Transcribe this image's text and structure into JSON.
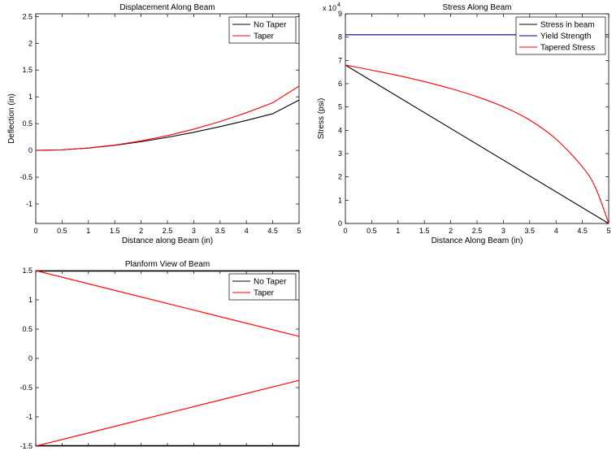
{
  "chart_data": [
    {
      "type": "line",
      "title": "Displacement Along Beam",
      "xlabel": "Distance along Beam (in)",
      "ylabel": "Deflection (in)",
      "xlim": [
        0,
        5
      ],
      "ylim": [
        -1.3636,
        2.55
      ],
      "xticks": [
        0,
        0.5,
        1,
        1.5,
        2,
        2.5,
        3,
        3.5,
        4,
        4.5,
        5
      ],
      "xtick_labels": [
        "0",
        "0.5",
        "1",
        "1.5",
        "2",
        "2.5",
        "3",
        "3.5",
        "4",
        "4.5",
        "5"
      ],
      "yticks": [
        -1,
        -0.5,
        0,
        0.5,
        1,
        1.5,
        2,
        2.5
      ],
      "ytick_labels": [
        "-1",
        "-0.5",
        "0",
        "0.5",
        "1",
        "1.5",
        "2",
        "2.5"
      ],
      "grid": false,
      "legend_position": "top-right",
      "series": [
        {
          "name": "No Taper",
          "color": "#000000",
          "x": [
            0,
            0.5,
            1,
            1.5,
            2,
            2.5,
            3,
            3.5,
            4,
            4.5,
            5
          ],
          "y": [
            0,
            0.011,
            0.044,
            0.095,
            0.163,
            0.244,
            0.338,
            0.444,
            0.56,
            0.685,
            0.94
          ]
        },
        {
          "name": "Taper",
          "color": "#ff0000",
          "x": [
            0,
            0.5,
            1,
            1.5,
            2,
            2.5,
            3,
            3.5,
            4,
            4.5,
            5
          ],
          "y": [
            0,
            0.011,
            0.045,
            0.1,
            0.177,
            0.276,
            0.397,
            0.54,
            0.704,
            0.89,
            1.2
          ]
        }
      ]
    },
    {
      "type": "line",
      "title": "Stress Along Beam",
      "xlabel": "Distance Along Beam (in)",
      "ylabel": "Stress (psi)",
      "y_multiplier": "x 10",
      "y_multiplier_exp": "4",
      "xlim": [
        0,
        5
      ],
      "ylim": [
        0,
        9
      ],
      "xticks": [
        0,
        0.5,
        1,
        1.5,
        2,
        2.5,
        3,
        3.5,
        4,
        4.5,
        5
      ],
      "xtick_labels": [
        "0",
        "0.5",
        "1",
        "1.5",
        "2",
        "2.5",
        "3",
        "3.5",
        "4",
        "4.5",
        "5"
      ],
      "yticks": [
        0,
        1,
        2,
        3,
        4,
        5,
        6,
        7,
        8,
        9
      ],
      "ytick_labels": [
        "0",
        "1",
        "2",
        "3",
        "4",
        "5",
        "6",
        "7",
        "8",
        "9"
      ],
      "grid": false,
      "legend_position": "top-right",
      "series": [
        {
          "name": "Stress in beam",
          "color": "#000000",
          "x": [
            0,
            5
          ],
          "y": [
            6.8,
            0
          ]
        },
        {
          "name": "Yield Strength",
          "color": "#00008b",
          "x": [
            0,
            5
          ],
          "y": [
            8.1,
            8.1
          ]
        },
        {
          "name": "Tapered Stress",
          "color": "#ff0000",
          "x": [
            0,
            0.5,
            1,
            1.5,
            2,
            2.5,
            3,
            3.5,
            4,
            4.5,
            4.75,
            5
          ],
          "y": [
            6.8,
            6.58,
            6.35,
            6.09,
            5.79,
            5.44,
            5.01,
            4.44,
            3.62,
            2.43,
            1.53,
            0
          ]
        }
      ]
    },
    {
      "type": "line",
      "title": "Planform View of Beam",
      "xlabel": "",
      "ylabel": "",
      "xlim": [
        0,
        5
      ],
      "ylim": [
        -1.5,
        1.5
      ],
      "xticks": [
        0,
        0.5,
        1,
        1.5,
        2,
        2.5,
        3,
        3.5,
        4,
        4.5,
        5
      ],
      "yticks": [
        -1.5,
        -1,
        -0.5,
        0,
        0.5,
        1,
        1.5
      ],
      "ytick_labels": [
        "-1.5",
        "-1",
        "-0.5",
        "0",
        "0.5",
        "1",
        "1.5"
      ],
      "grid": false,
      "legend_position": "top-right",
      "series": [
        {
          "name": "No Taper",
          "color": "#000000",
          "segments": [
            {
              "x": [
                0,
                5
              ],
              "y": [
                1.5,
                1.5
              ]
            },
            {
              "x": [
                0,
                5
              ],
              "y": [
                -1.5,
                -1.5
              ]
            }
          ]
        },
        {
          "name": "Taper",
          "color": "#ff0000",
          "segments": [
            {
              "x": [
                0,
                5
              ],
              "y": [
                1.5,
                0.375
              ]
            },
            {
              "x": [
                0,
                5
              ],
              "y": [
                -1.5,
                -0.375
              ]
            }
          ]
        }
      ]
    }
  ]
}
